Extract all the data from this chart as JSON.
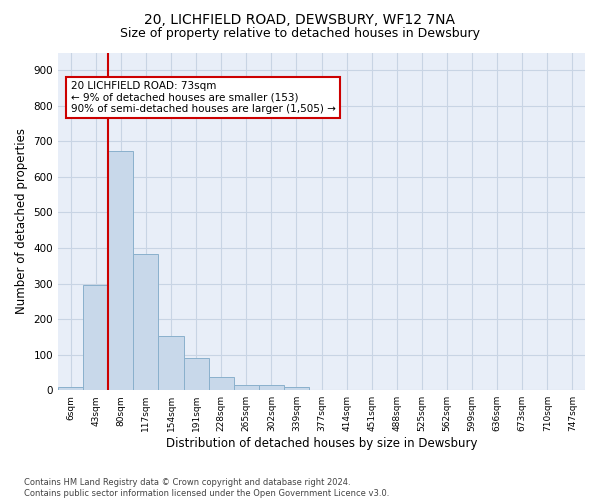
{
  "title": "20, LICHFIELD ROAD, DEWSBURY, WF12 7NA",
  "subtitle": "Size of property relative to detached houses in Dewsbury",
  "xlabel": "Distribution of detached houses by size in Dewsbury",
  "ylabel": "Number of detached properties",
  "bar_values": [
    8,
    295,
    672,
    383,
    153,
    90,
    37,
    14,
    14,
    10,
    0,
    0,
    0,
    0,
    0,
    0,
    0,
    0,
    0,
    0,
    0
  ],
  "bar_labels": [
    "6sqm",
    "43sqm",
    "80sqm",
    "117sqm",
    "154sqm",
    "191sqm",
    "228sqm",
    "265sqm",
    "302sqm",
    "339sqm",
    "377sqm",
    "414sqm",
    "451sqm",
    "488sqm",
    "525sqm",
    "562sqm",
    "599sqm",
    "636sqm",
    "673sqm",
    "710sqm",
    "747sqm"
  ],
  "bar_color": "#c8d8ea",
  "bar_edgecolor": "#8ab0cc",
  "grid_color": "#c8d4e4",
  "background_color": "#e8eef8",
  "annotation_box_text": "20 LICHFIELD ROAD: 73sqm\n← 9% of detached houses are smaller (153)\n90% of semi-detached houses are larger (1,505) →",
  "annotation_box_color": "#cc0000",
  "vline_color": "#cc0000",
  "ylim": [
    0,
    950
  ],
  "yticks": [
    0,
    100,
    200,
    300,
    400,
    500,
    600,
    700,
    800,
    900
  ],
  "footer": "Contains HM Land Registry data © Crown copyright and database right 2024.\nContains public sector information licensed under the Open Government Licence v3.0.",
  "title_fontsize": 10,
  "subtitle_fontsize": 9,
  "xlabel_fontsize": 8.5,
  "ylabel_fontsize": 8.5
}
